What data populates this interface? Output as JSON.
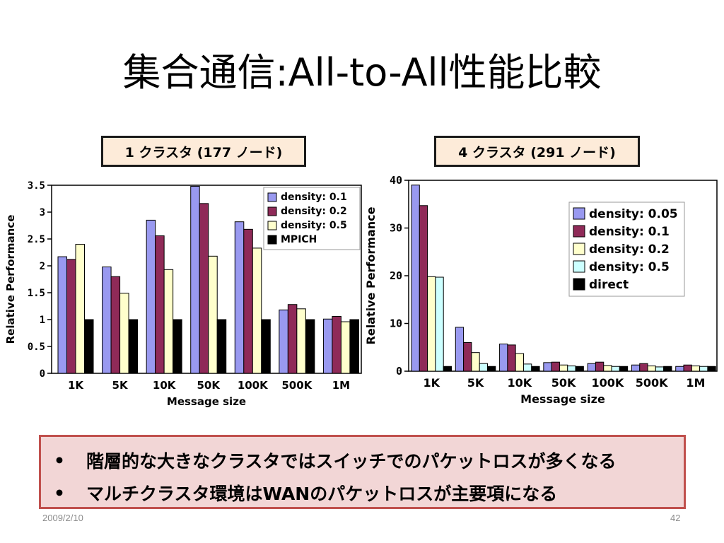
{
  "slide": {
    "title": "集合通信:All-to-All性能比較",
    "date": "2009/2/10",
    "page_number": "42"
  },
  "bullets": [
    "階層的な大きなクラスタではスイッチでのパケットロスが多くなる",
    "マルチクラスタ環境はWANのパケットロスが主要項になる"
  ],
  "colors": {
    "label_box_bg": "#fdebd9",
    "bullet_box_bg": "#f2d6d6",
    "bullet_box_border": "#c0504d",
    "series": [
      "#9999f0",
      "#8f2a58",
      "#ffffcc",
      "#ccffff",
      "#000000"
    ]
  },
  "chart_data": [
    {
      "type": "bar",
      "label": "1 クラスタ (177 ノード)",
      "categories": [
        "1K",
        "5K",
        "10K",
        "50K",
        "100K",
        "500K",
        "1M"
      ],
      "xlabel": "Message size",
      "ylabel": "Relative Performance",
      "ylim": [
        0,
        3.5
      ],
      "yticks": [
        "0",
        "0.5",
        "1",
        "1.5",
        "2",
        "2.5",
        "3",
        "3.5"
      ],
      "legend_position": "top-right",
      "grid": false,
      "series": [
        {
          "name": "density: 0.1",
          "color": "#9999f0",
          "values": [
            2.17,
            1.98,
            2.85,
            3.48,
            2.82,
            1.18,
            1.01
          ]
        },
        {
          "name": "density: 0.2",
          "color": "#8f2a58",
          "values": [
            2.12,
            1.8,
            2.56,
            3.16,
            2.68,
            1.28,
            1.06
          ]
        },
        {
          "name": "density: 0.5",
          "color": "#ffffcc",
          "values": [
            2.4,
            1.49,
            1.93,
            2.18,
            2.33,
            1.2,
            0.96
          ]
        },
        {
          "name": "MPICH",
          "color": "#000000",
          "values": [
            1.0,
            1.0,
            1.0,
            1.0,
            1.0,
            1.0,
            1.0
          ]
        }
      ]
    },
    {
      "type": "bar",
      "label": "4 クラスタ (291 ノード)",
      "categories": [
        "1K",
        "5K",
        "10K",
        "50K",
        "100K",
        "500K",
        "1M"
      ],
      "xlabel": "Message size",
      "ylabel": "Relative Performance",
      "ylim": [
        0,
        40
      ],
      "yticks": [
        "0",
        "10",
        "20",
        "30",
        "40"
      ],
      "legend_position": "top-right",
      "grid": false,
      "series": [
        {
          "name": "density: 0.05",
          "color": "#9999f0",
          "values": [
            39.0,
            9.2,
            5.7,
            1.8,
            1.6,
            1.3,
            1.0
          ]
        },
        {
          "name": "density: 0.1",
          "color": "#8f2a58",
          "values": [
            34.7,
            6.0,
            5.5,
            1.9,
            1.9,
            1.6,
            1.3
          ]
        },
        {
          "name": "density: 0.2",
          "color": "#ffffcc",
          "values": [
            19.8,
            3.9,
            3.7,
            1.3,
            1.2,
            1.1,
            1.1
          ]
        },
        {
          "name": "density: 0.5",
          "color": "#ccffff",
          "values": [
            19.7,
            1.6,
            1.5,
            1.1,
            1.0,
            0.9,
            1.0
          ]
        },
        {
          "name": "direct",
          "color": "#000000",
          "values": [
            1.0,
            1.0,
            1.0,
            1.0,
            1.0,
            1.0,
            1.0
          ]
        }
      ]
    }
  ]
}
